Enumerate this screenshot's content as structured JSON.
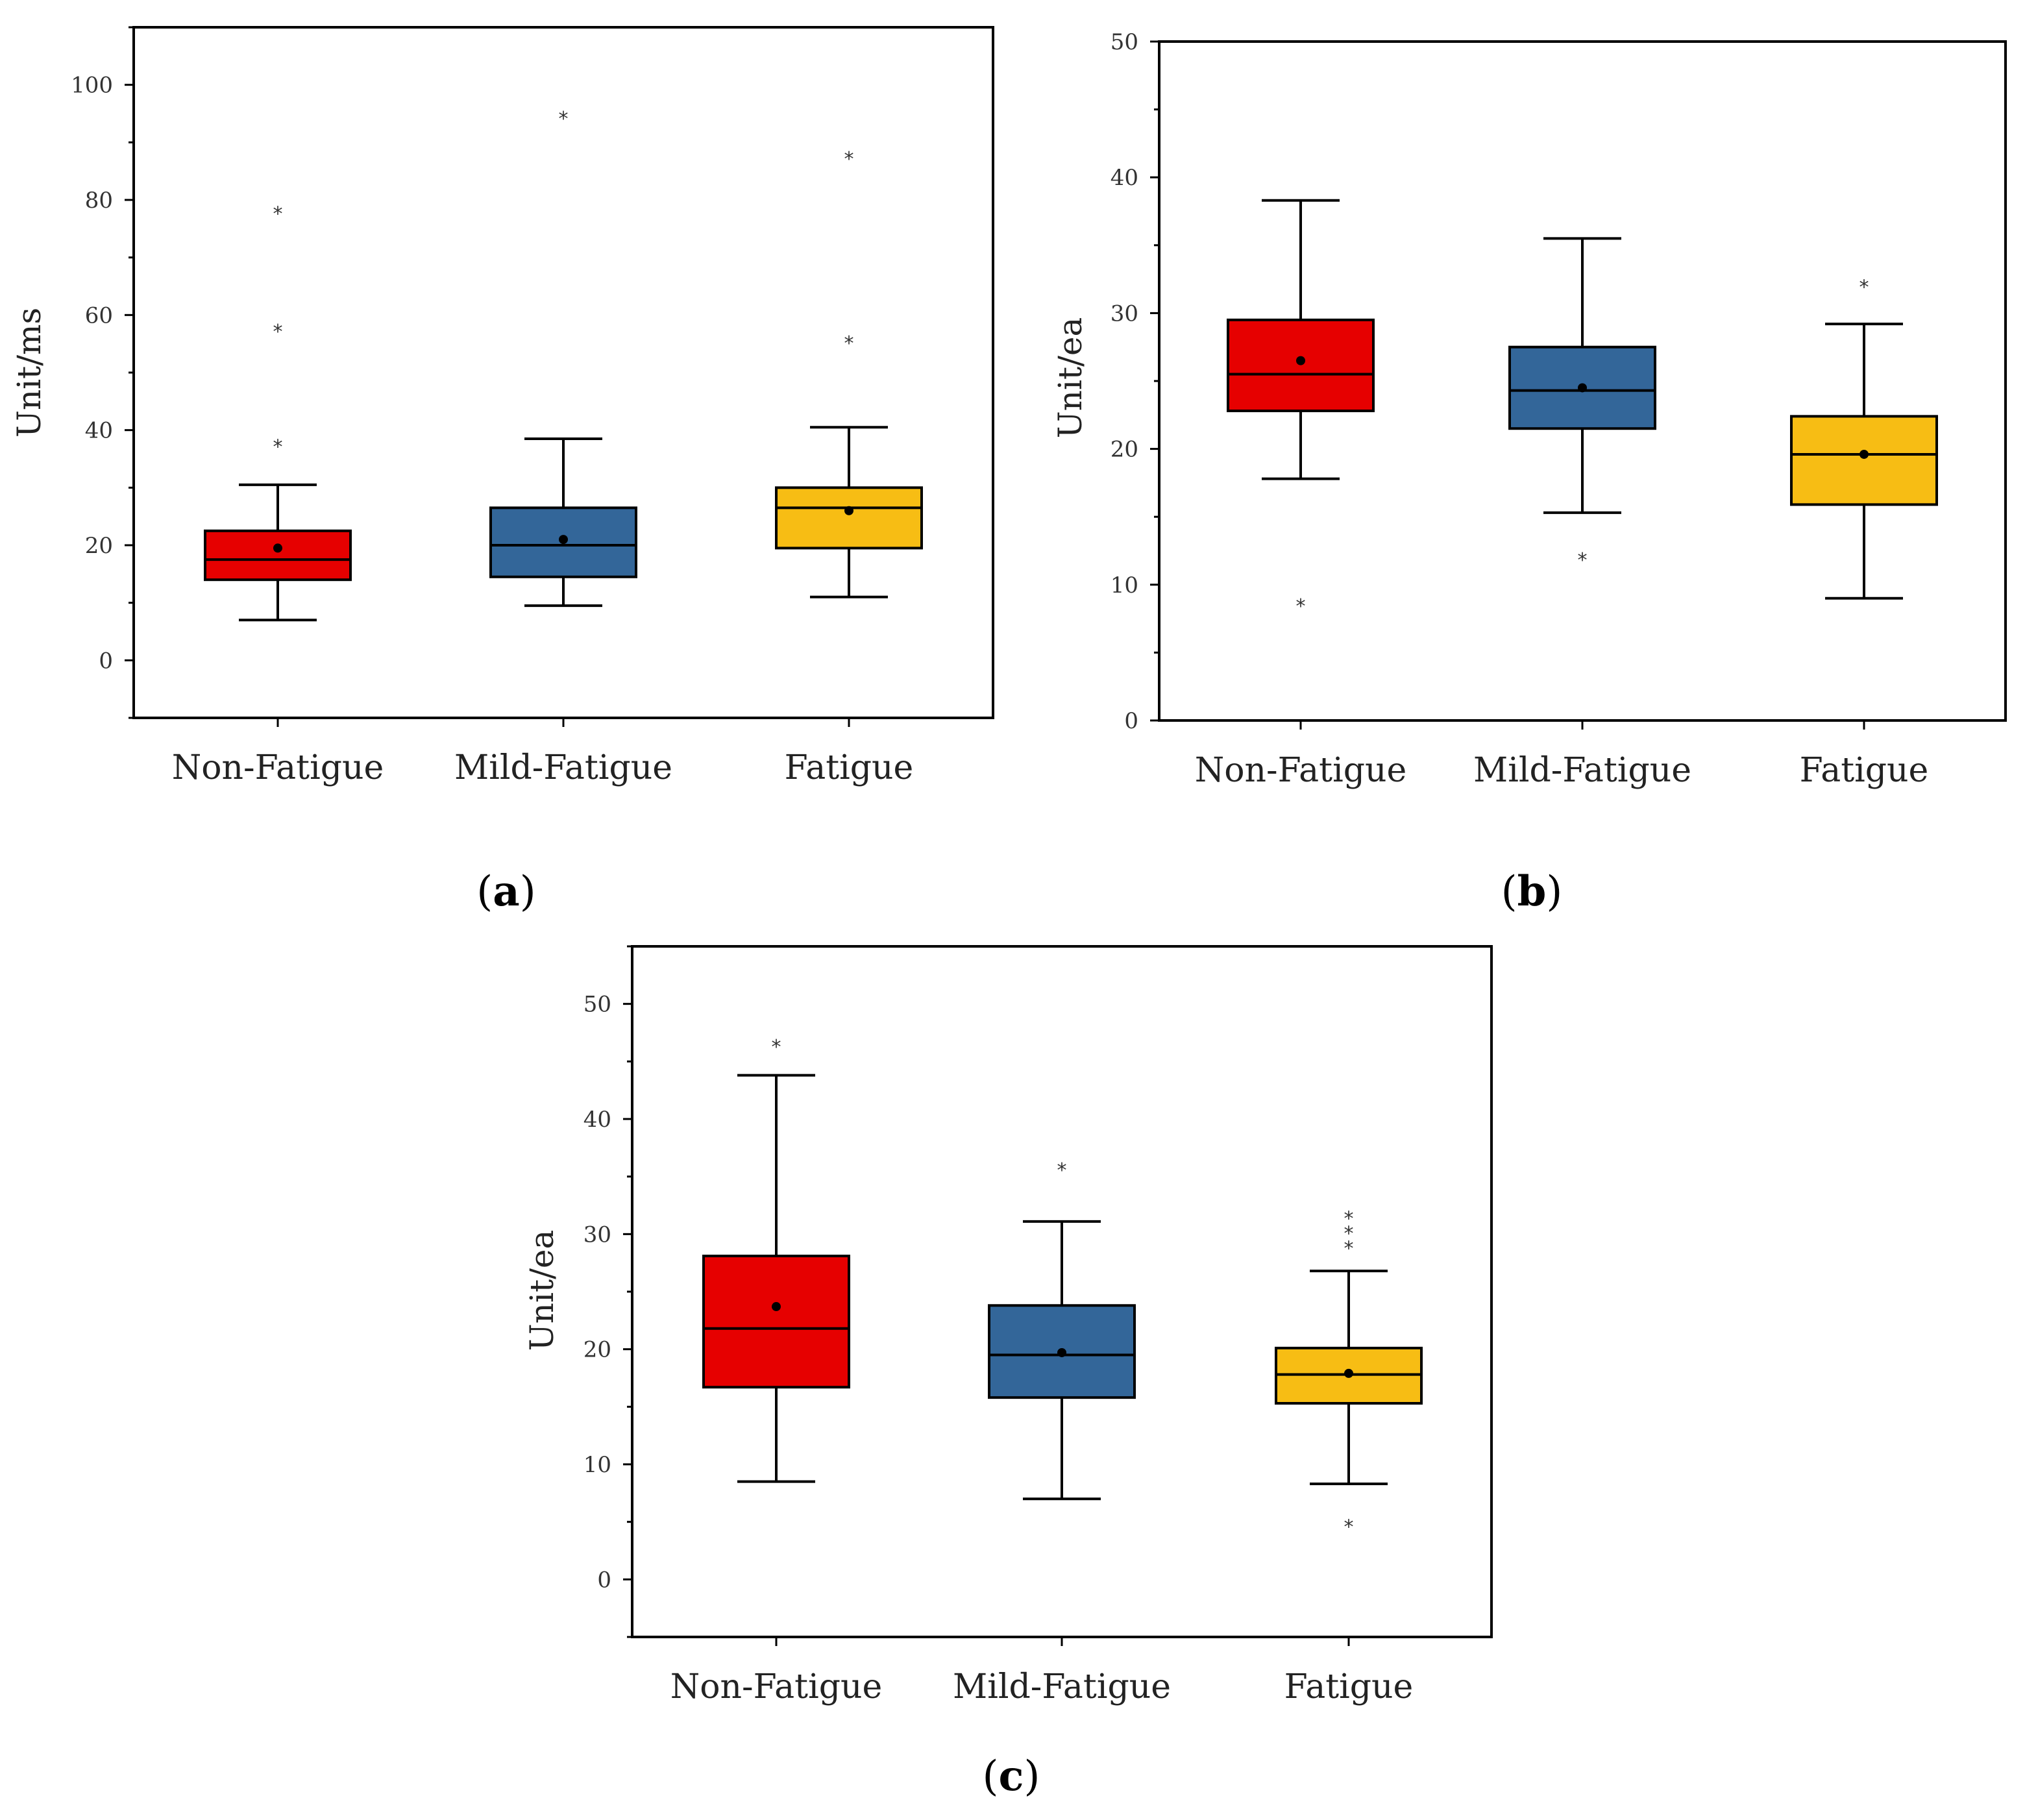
{
  "colors": {
    "Non-Fatigue": "#e60000",
    "Mild-Fatigue": "#336699",
    "Fatigue": "#f7bd14"
  },
  "chart_data": [
    {
      "type": "box",
      "panel_letter": "a",
      "ylabel": "Unit/ms",
      "ylim": [
        -10,
        110
      ],
      "yticks": [
        0,
        20,
        40,
        60,
        80,
        100
      ],
      "ytick_labels": [
        "0",
        "20",
        "40",
        "60",
        "80",
        "100"
      ],
      "minor_step": 10,
      "categories": [
        "Non-Fatigue",
        "Mild-Fatigue",
        "Fatigue"
      ],
      "boxes": [
        {
          "category": "Non-Fatigue",
          "whisker_low": 7,
          "q1": 14,
          "median": 17.5,
          "q3": 22.5,
          "whisker_high": 30.5,
          "mean": 19.5,
          "outliers": [
            38,
            58,
            78.5
          ]
        },
        {
          "category": "Mild-Fatigue",
          "whisker_low": 9.5,
          "q1": 14.5,
          "median": 20,
          "q3": 26.5,
          "whisker_high": 38.5,
          "mean": 21,
          "outliers": [
            95
          ]
        },
        {
          "category": "Fatigue",
          "whisker_low": 11,
          "q1": 19.5,
          "median": 26.5,
          "q3": 30,
          "whisker_high": 40.5,
          "mean": 26,
          "outliers": [
            56,
            88
          ]
        }
      ]
    },
    {
      "type": "box",
      "panel_letter": "b",
      "ylabel": "Unit/ea",
      "ylim": [
        0,
        50
      ],
      "yticks": [
        0,
        10,
        20,
        30,
        40,
        50
      ],
      "ytick_labels": [
        "0",
        "10",
        "20",
        "30",
        "40",
        "50"
      ],
      "minor_step": 5,
      "categories": [
        "Non-Fatigue",
        "Mild-Fatigue",
        "Fatigue"
      ],
      "boxes": [
        {
          "category": "Non-Fatigue",
          "whisker_low": 17.8,
          "q1": 22.8,
          "median": 25.5,
          "q3": 29.5,
          "whisker_high": 38.3,
          "mean": 26.5,
          "outliers": [
            8.8
          ]
        },
        {
          "category": "Mild-Fatigue",
          "whisker_low": 15.3,
          "q1": 21.5,
          "median": 24.3,
          "q3": 27.5,
          "whisker_high": 35.5,
          "mean": 24.5,
          "outliers": [
            12.2
          ]
        },
        {
          "category": "Fatigue",
          "whisker_low": 9,
          "q1": 15.9,
          "median": 19.6,
          "q3": 22.4,
          "whisker_high": 29.2,
          "mean": 19.6,
          "outliers": [
            32.3
          ]
        }
      ]
    },
    {
      "type": "box",
      "panel_letter": "c",
      "ylabel": "Unit/ea",
      "ylim": [
        -5,
        55
      ],
      "yticks": [
        0,
        10,
        20,
        30,
        40,
        50
      ],
      "ytick_labels": [
        "0",
        "10",
        "20",
        "30",
        "40",
        "50"
      ],
      "minor_step": 5,
      "categories": [
        "Non-Fatigue",
        "Mild-Fatigue",
        "Fatigue"
      ],
      "boxes": [
        {
          "category": "Non-Fatigue",
          "whisker_low": 8.5,
          "q1": 16.7,
          "median": 21.8,
          "q3": 28.1,
          "whisker_high": 43.8,
          "mean": 23.7,
          "outliers": [
            46.7
          ]
        },
        {
          "category": "Mild-Fatigue",
          "whisker_low": 7,
          "q1": 15.8,
          "median": 19.5,
          "q3": 23.8,
          "whisker_high": 31.1,
          "mean": 19.7,
          "outliers": [
            36
          ]
        },
        {
          "category": "Fatigue",
          "whisker_low": 8.3,
          "q1": 15.3,
          "median": 17.8,
          "q3": 20.1,
          "whisker_high": 26.8,
          "mean": 17.9,
          "outliers": [
            5,
            29.2,
            30.5,
            31.8
          ]
        }
      ]
    }
  ]
}
